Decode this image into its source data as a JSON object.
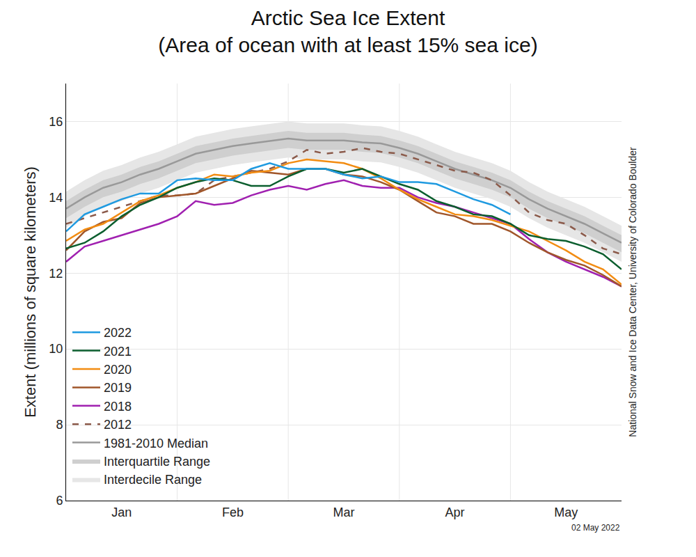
{
  "chart_data": {
    "type": "line",
    "title": "Arctic Sea Ice Extent\n(Area of ocean with at least 15% sea ice)",
    "y_label": "Extent (millions of square kilometers)",
    "source": "National Snow and Ice Data Center, University of Colorado Boulder",
    "date": "02 May 2022",
    "categories": [
      null,
      null,
      null,
      "Jan",
      null,
      null,
      null,
      null,
      null,
      "Feb",
      null,
      null,
      null,
      null,
      null,
      "Mar",
      null,
      null,
      null,
      null,
      null,
      "Apr",
      null,
      null,
      null,
      null,
      null,
      "May",
      null,
      null,
      null
    ],
    "ylim": [
      6,
      17
    ],
    "yticks": [
      6,
      8,
      10,
      12,
      14,
      16
    ],
    "grid": true,
    "legend": "lower left",
    "series": [
      {
        "name": "2022",
        "color": "#1f9ae0",
        "line_style": "solid",
        "values": [
          13.1,
          13.55,
          13.75,
          13.95,
          14.1,
          14.1,
          14.45,
          14.5,
          14.45,
          14.45,
          14.75,
          14.9,
          14.75,
          14.75,
          14.75,
          14.6,
          14.5,
          14.55,
          14.4,
          14.4,
          14.35,
          14.15,
          13.95,
          13.8,
          13.55,
          null,
          null,
          null,
          null,
          null,
          null
        ]
      },
      {
        "name": "2021",
        "color": "#0b5e2e",
        "line_style": "solid",
        "values": [
          12.65,
          12.8,
          13.1,
          13.5,
          13.8,
          14.0,
          14.25,
          14.4,
          14.5,
          14.45,
          14.3,
          14.3,
          14.55,
          14.75,
          14.75,
          14.65,
          14.75,
          14.55,
          14.35,
          14.2,
          13.9,
          13.75,
          13.55,
          13.5,
          13.3,
          13.0,
          12.9,
          12.85,
          12.7,
          12.5,
          12.1
        ]
      },
      {
        "name": "2020",
        "color": "#f28c12",
        "line_style": "solid",
        "values": [
          12.85,
          13.15,
          13.3,
          13.6,
          13.9,
          14.05,
          14.25,
          14.4,
          14.6,
          14.55,
          14.65,
          14.7,
          14.9,
          15.0,
          14.95,
          14.9,
          14.75,
          14.5,
          14.2,
          13.95,
          13.75,
          13.55,
          13.5,
          13.4,
          13.25,
          13.1,
          12.85,
          12.6,
          12.3,
          12.1,
          11.7
        ]
      },
      {
        "name": "2019",
        "color": "#a0562a",
        "line_style": "solid",
        "values": [
          12.6,
          13.1,
          13.35,
          13.45,
          13.85,
          14.0,
          14.05,
          14.1,
          14.3,
          14.5,
          14.7,
          14.65,
          14.6,
          14.75,
          14.75,
          14.6,
          14.55,
          14.4,
          14.2,
          13.9,
          13.6,
          13.5,
          13.3,
          13.3,
          13.1,
          12.8,
          12.55,
          12.35,
          12.2,
          11.95,
          11.65
        ]
      },
      {
        "name": "2018",
        "color": "#a020b0",
        "line_style": "solid",
        "values": [
          12.3,
          12.7,
          12.85,
          13.0,
          13.15,
          13.3,
          13.5,
          13.9,
          13.8,
          13.85,
          14.05,
          14.2,
          14.3,
          14.2,
          14.35,
          14.45,
          14.3,
          14.25,
          14.25,
          14.0,
          13.85,
          13.75,
          13.6,
          13.45,
          13.3,
          12.9,
          12.55,
          12.3,
          12.1,
          11.9,
          11.65
        ]
      },
      {
        "name": "2012",
        "color": "#8b5a4a",
        "line_style": "dashed",
        "values": [
          13.3,
          13.45,
          13.6,
          13.75,
          13.9,
          14.05,
          14.05,
          14.1,
          14.45,
          14.55,
          14.65,
          14.75,
          14.95,
          15.25,
          15.15,
          15.2,
          15.3,
          15.2,
          15.15,
          15.0,
          14.85,
          14.7,
          14.65,
          14.45,
          14.05,
          13.6,
          13.4,
          13.3,
          13.0,
          12.65,
          12.5
        ]
      },
      {
        "name": "1981-2010 Median",
        "color": "#999999",
        "line_style": "solid",
        "values": [
          13.7,
          14.0,
          14.25,
          14.4,
          14.6,
          14.75,
          14.95,
          15.15,
          15.25,
          15.35,
          15.42,
          15.48,
          15.55,
          15.5,
          15.5,
          15.5,
          15.45,
          15.42,
          15.3,
          15.15,
          14.95,
          14.75,
          14.6,
          14.45,
          14.25,
          13.95,
          13.7,
          13.5,
          13.3,
          13.05,
          12.8
        ]
      },
      {
        "name": "Interquartile Range",
        "color": "#cfcfcf",
        "type": "band",
        "lower": [
          13.45,
          13.75,
          14.0,
          14.15,
          14.35,
          14.5,
          14.7,
          14.9,
          15.0,
          15.1,
          15.17,
          15.23,
          15.3,
          15.25,
          15.25,
          15.25,
          15.2,
          15.17,
          15.05,
          14.9,
          14.7,
          14.5,
          14.35,
          14.2,
          14.0,
          13.7,
          13.45,
          13.25,
          13.05,
          12.8,
          12.55
        ],
        "upper": [
          13.9,
          14.2,
          14.45,
          14.6,
          14.8,
          14.95,
          15.15,
          15.35,
          15.45,
          15.55,
          15.62,
          15.68,
          15.75,
          15.7,
          15.7,
          15.7,
          15.65,
          15.62,
          15.5,
          15.35,
          15.15,
          14.95,
          14.8,
          14.65,
          14.45,
          14.15,
          13.9,
          13.7,
          13.5,
          13.25,
          13.0
        ]
      },
      {
        "name": "Interdecile Range",
        "color": "#e6e6e6",
        "type": "band",
        "lower": [
          13.2,
          13.5,
          13.75,
          13.9,
          14.1,
          14.25,
          14.45,
          14.65,
          14.75,
          14.85,
          14.92,
          14.98,
          15.05,
          15.0,
          15.0,
          15.0,
          14.95,
          14.92,
          14.8,
          14.65,
          14.45,
          14.25,
          14.1,
          13.95,
          13.75,
          13.45,
          13.2,
          13.0,
          12.8,
          12.55,
          12.3
        ],
        "upper": [
          14.15,
          14.45,
          14.7,
          14.85,
          15.05,
          15.2,
          15.4,
          15.6,
          15.7,
          15.8,
          15.87,
          15.93,
          16.0,
          15.95,
          15.95,
          15.95,
          15.9,
          15.87,
          15.75,
          15.6,
          15.4,
          15.2,
          15.05,
          14.9,
          14.7,
          14.4,
          14.15,
          13.95,
          13.75,
          13.5,
          13.25
        ]
      }
    ]
  }
}
